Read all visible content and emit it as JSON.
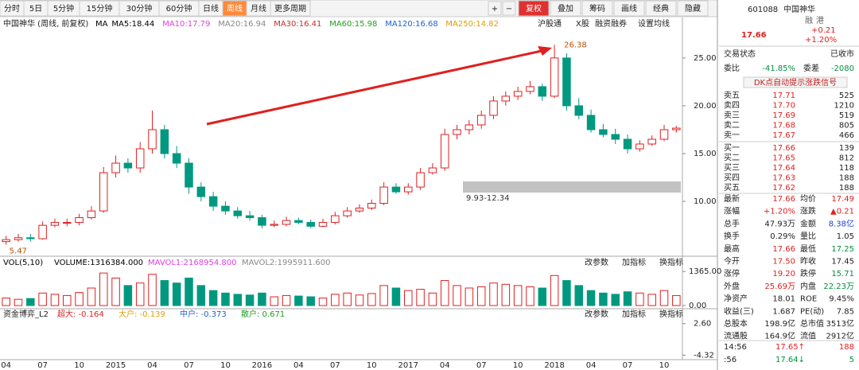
{
  "toolbar": {
    "periods": [
      "分时",
      "5日",
      "5分钟",
      "15分钟",
      "30分钟",
      "60分钟",
      "日线",
      "周线",
      "月线",
      "更多周期"
    ],
    "tools": [
      "复权",
      "叠加",
      "筹码",
      "画线",
      "经典",
      "隐藏"
    ]
  },
  "chart_data": {
    "type": "candlestick",
    "title": "中国神华 (周线, 前复权)",
    "indicators": [
      {
        "label": "MA",
        "color": "#000000"
      },
      {
        "label": "MA5:18.44",
        "color": "#000000"
      },
      {
        "label": "MA10:17.79",
        "color": "#e040e0"
      },
      {
        "label": "MA20:16.94",
        "color": "#888888"
      },
      {
        "label": "MA30:16.41",
        "color": "#c03030"
      },
      {
        "label": "MA60:15.98",
        "color": "#20a020"
      },
      {
        "label": "MA120:16.68",
        "color": "#2060d0"
      },
      {
        "label": "MA250:14.82",
        "color": "#e0a000"
      }
    ],
    "links": [
      "沪股通",
      "X股",
      "融资融券",
      "设置均线"
    ],
    "annotations": [
      "26.38",
      "9.93-12.34",
      "5.47"
    ],
    "up_color": "#e02020",
    "down_color": "#009980",
    "ylim": [
      4.6,
      27.9
    ],
    "yticks": [
      {
        "value": 10,
        "label": "10.00"
      },
      {
        "value": 15,
        "label": "15.00"
      },
      {
        "value": 20,
        "label": "20.00"
      },
      {
        "value": 25,
        "label": "25.00"
      }
    ],
    "categories": [
      "04",
      null,
      null,
      "07",
      null,
      null,
      "10",
      null,
      null,
      "2015",
      null,
      null,
      "04",
      null,
      null,
      "07",
      null,
      null,
      "10",
      null,
      null,
      "2016",
      null,
      null,
      "04",
      null,
      null,
      "07",
      null,
      null,
      "10",
      null,
      null,
      "2017",
      null,
      null,
      "04",
      null,
      null,
      "07",
      null,
      null,
      "10",
      null,
      null,
      "2018",
      null,
      null,
      "04",
      null,
      null,
      "07",
      null,
      null,
      "10",
      null
    ],
    "open": [
      5.8,
      6.0,
      6.2,
      6.1,
      7.5,
      7.8,
      7.8,
      8.3,
      9.0,
      13.0,
      14.0,
      13.5,
      15.5,
      17.5,
      15.0,
      14.0,
      11.5,
      10.5,
      9.5,
      9.0,
      8.5,
      8.3,
      7.5,
      7.6,
      8.0,
      7.8,
      7.4,
      7.8,
      8.5,
      9.0,
      9.3,
      9.8,
      11.5,
      11.0,
      11.5,
      13.0,
      13.5,
      17.0,
      17.5,
      18.0,
      19.0,
      20.5,
      21.0,
      21.5,
      22.0,
      21.0,
      25.0,
      20.0,
      19.0,
      17.5,
      17.0,
      16.5,
      15.5,
      16.0,
      16.5,
      17.5
    ],
    "high": [
      6.4,
      6.6,
      6.6,
      7.9,
      8.2,
      8.2,
      8.7,
      9.5,
      13.6,
      14.8,
      14.5,
      16.2,
      19.5,
      18.0,
      15.8,
      14.5,
      12.0,
      11.0,
      10.0,
      9.4,
      9.0,
      8.6,
      8.0,
      8.4,
      8.3,
      8.1,
      8.2,
      8.9,
      9.4,
      9.7,
      10.2,
      12.0,
      11.9,
      11.9,
      13.5,
      14.0,
      17.6,
      18.0,
      18.5,
      19.5,
      21.0,
      21.5,
      22.0,
      22.6,
      22.3,
      26.38,
      25.5,
      20.8,
      19.6,
      18.1,
      17.6,
      17.0,
      16.4,
      16.9,
      18.0,
      17.9
    ],
    "low": [
      5.47,
      5.8,
      5.8,
      6.0,
      7.3,
      7.4,
      7.5,
      8.1,
      8.8,
      12.5,
      13.0,
      13.0,
      15.0,
      14.5,
      13.5,
      10.8,
      10.0,
      9.0,
      8.6,
      8.2,
      8.0,
      7.2,
      7.3,
      7.4,
      7.6,
      7.2,
      7.3,
      7.6,
      8.3,
      8.8,
      9.1,
      9.6,
      10.8,
      10.7,
      11.2,
      12.8,
      13.2,
      16.5,
      17.0,
      17.6,
      18.6,
      20.0,
      20.6,
      21.2,
      20.5,
      20.8,
      19.5,
      18.6,
      17.2,
      16.7,
      16.0,
      15.0,
      15.2,
      15.8,
      16.3,
      17.2
    ],
    "close": [
      6.0,
      6.2,
      6.1,
      7.5,
      7.8,
      7.8,
      8.3,
      9.0,
      13.0,
      14.0,
      13.5,
      15.5,
      17.5,
      15.0,
      14.0,
      11.5,
      10.5,
      9.5,
      9.0,
      8.5,
      8.3,
      7.5,
      7.6,
      8.0,
      7.8,
      7.4,
      7.8,
      8.5,
      9.0,
      9.3,
      9.8,
      11.5,
      11.0,
      11.5,
      13.0,
      13.5,
      17.0,
      17.5,
      18.0,
      19.0,
      20.5,
      21.0,
      21.5,
      22.0,
      21.0,
      25.0,
      20.0,
      19.0,
      17.5,
      17.0,
      16.5,
      15.5,
      16.0,
      16.5,
      17.5,
      17.66
    ],
    "volume": {
      "legend": [
        "VOL(5,10)",
        "VOLUME:1316384.000",
        "MAVOL1:2168954.800",
        "MAVOL2:1995911.600"
      ],
      "legend_colors": [
        "#000000",
        "#000000",
        "#e040e0",
        "#888888"
      ],
      "values": [
        300,
        250,
        280,
        500,
        450,
        400,
        520,
        700,
        1300,
        1100,
        800,
        900,
        1250,
        1000,
        900,
        1100,
        800,
        600,
        500,
        450,
        420,
        500,
        350,
        400,
        380,
        350,
        300,
        450,
        500,
        420,
        480,
        800,
        700,
        600,
        650,
        500,
        1000,
        800,
        700,
        750,
        900,
        850,
        800,
        750,
        700,
        1200,
        1000,
        800,
        600,
        500,
        450,
        550,
        500,
        450,
        600,
        400
      ],
      "ylim": [
        0,
        1400
      ],
      "yticks": [
        {
          "value": 0,
          "label": "0.00"
        },
        {
          "value": 1365,
          "label": "1365.00"
        }
      ]
    },
    "fund": {
      "title": "资金博弈_L2",
      "legend": [
        {
          "label": "超大: -0.164",
          "color": "#e02020"
        },
        {
          "label": "大户: -0.139",
          "color": "#e0a000"
        },
        {
          "label": "中户: -0.373",
          "color": "#2060d0"
        },
        {
          "label": "散户: 0.671",
          "color": "#20a020"
        }
      ],
      "ylim": [
        -4.6,
        2.9
      ],
      "yticks": [
        {
          "value": 2.6,
          "label": "2.60"
        },
        {
          "value": -4.32,
          "label": "-4.32"
        }
      ]
    },
    "panel_buttons": [
      "改参数",
      "加指标",
      "换指标"
    ]
  },
  "quote": {
    "code": "601088",
    "name": "中国神华",
    "badges": [
      "融",
      "港"
    ],
    "price": "17.66",
    "change": "+0.21",
    "pct": "+1.20%",
    "status": [
      "交易状态",
      "已收市"
    ],
    "weibi": [
      "委比",
      "-41.85%",
      "委差",
      "-2080"
    ],
    "dk": "DK点自动提示涨跌信号",
    "book": [
      [
        "卖五",
        "17.71",
        "525"
      ],
      [
        "卖四",
        "17.70",
        "1210"
      ],
      [
        "卖三",
        "17.69",
        "519"
      ],
      [
        "卖二",
        "17.68",
        "805"
      ],
      [
        "卖一",
        "17.67",
        "466"
      ],
      [
        "买一",
        "17.66",
        "139"
      ],
      [
        "买二",
        "17.65",
        "812"
      ],
      [
        "买三",
        "17.64",
        "118"
      ],
      [
        "买四",
        "17.63",
        "188"
      ],
      [
        "买五",
        "17.62",
        "188"
      ]
    ],
    "stats": [
      [
        "最新",
        "17.66",
        "均价",
        "17.49"
      ],
      [
        "涨幅",
        "+1.20%",
        "涨跌",
        "▲0.21"
      ],
      [
        "总手",
        "47.93万",
        "金额",
        "8.38亿"
      ],
      [
        "换手",
        "0.29%",
        "量比",
        "1.05"
      ],
      [
        "最高",
        "17.66",
        "最低",
        "17.25"
      ],
      [
        "今开",
        "17.50",
        "昨收",
        "17.45"
      ],
      [
        "涨停",
        "19.20",
        "跌停",
        "15.71"
      ],
      [
        "外盘",
        "25.69万",
        "内盘",
        "22.23万"
      ],
      [
        "净资产",
        "18.01",
        "ROE",
        "9.45%"
      ],
      [
        "收益(三)",
        "1.687",
        "PE(动)",
        "7.85"
      ],
      [
        "总股本",
        "198.9亿",
        "总市值",
        "3513亿"
      ],
      [
        "流通股",
        "164.9亿",
        "流值",
        "2912亿"
      ]
    ],
    "ticks": [
      [
        "14:56",
        "17.65↑",
        "188"
      ],
      [
        ":56",
        "17.64↓",
        "5"
      ]
    ]
  }
}
